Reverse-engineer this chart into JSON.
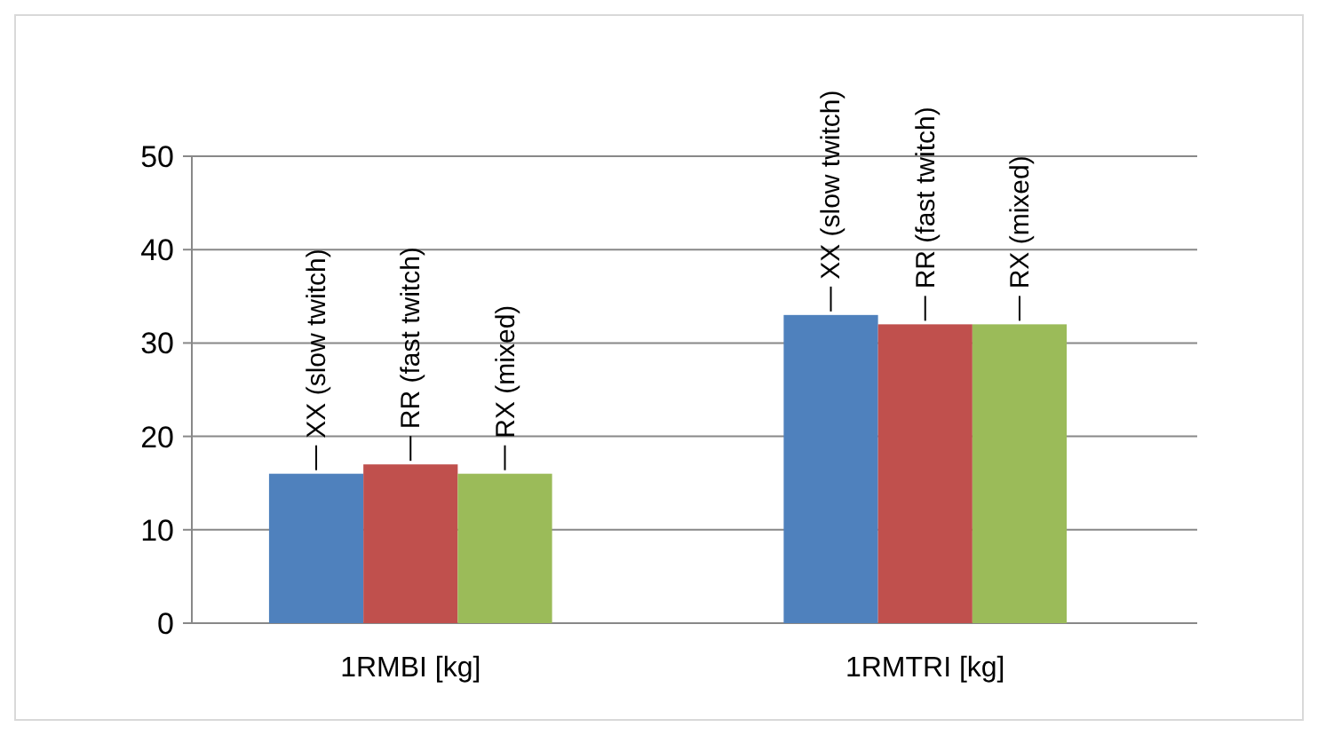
{
  "chart_data": {
    "type": "bar",
    "categories": [
      "1RMBI [kg]",
      "1RMTRI [kg]"
    ],
    "series": [
      {
        "name": "XX (slow twitch)",
        "color": "#4f81bd",
        "values": [
          16,
          33
        ]
      },
      {
        "name": "RR (fast twitch)",
        "color": "#c0504d",
        "values": [
          17,
          32
        ]
      },
      {
        "name": "RX (mixed)",
        "color": "#9bbb59",
        "values": [
          16,
          32
        ]
      }
    ],
    "ylim": [
      0,
      50
    ],
    "yticks": [
      0,
      10,
      20,
      30,
      40,
      50
    ],
    "grid": "y"
  }
}
